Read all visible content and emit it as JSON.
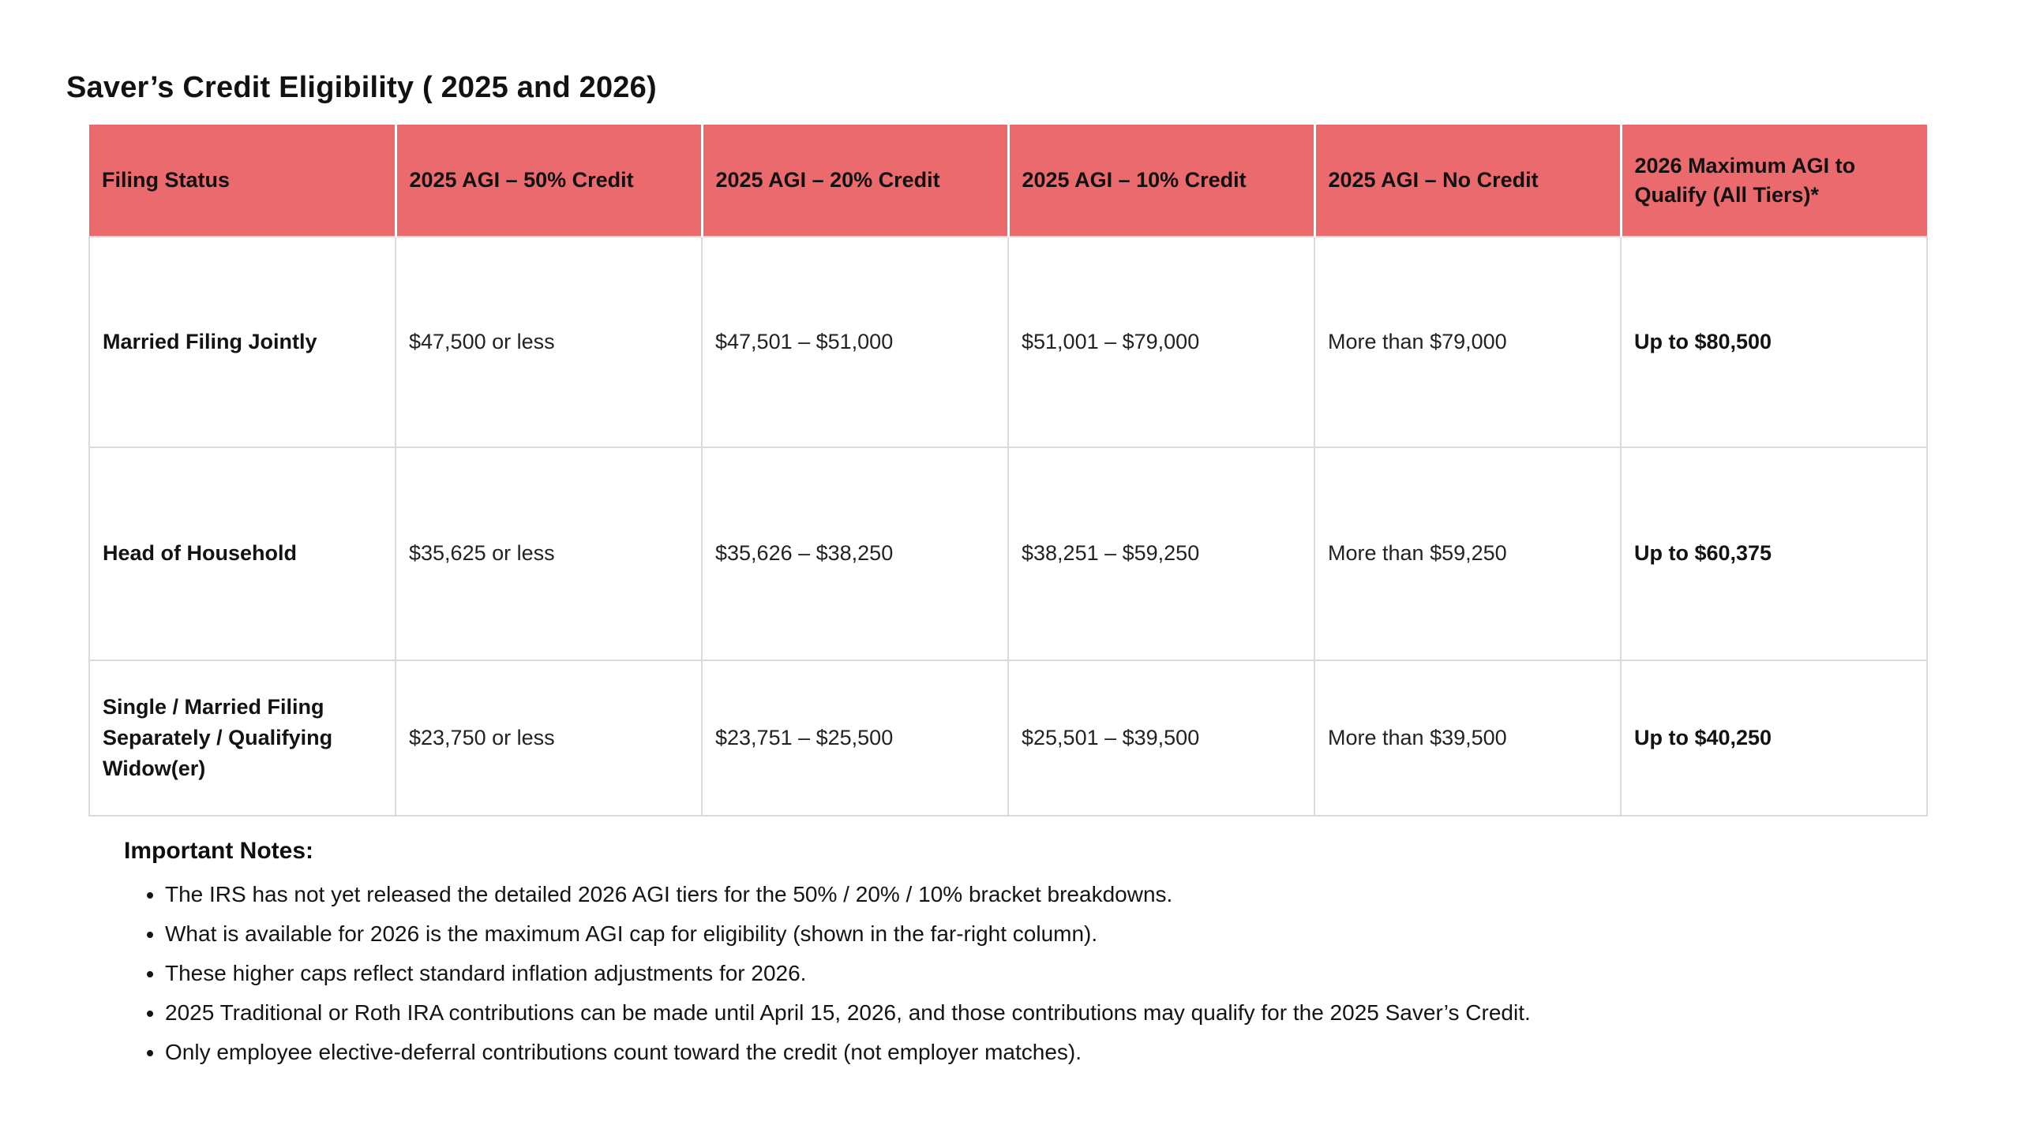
{
  "page": {
    "title": "Saver’s Credit Eligibility ( 2025 and 2026)"
  },
  "colors": {
    "header_bg": "#eb6a6e",
    "body_border": "#dbdbdb",
    "text": "#1a1a1a"
  },
  "table": {
    "columns": [
      "Filing Status",
      "2025 AGI – 50% Credit",
      "2025 AGI – 20% Credit",
      "2025 AGI – 10% Credit",
      "2025 AGI – No Credit",
      "2026 Maximum AGI to Qualify (All Tiers)*"
    ],
    "rows": [
      [
        "Married Filing Jointly",
        "$47,500 or less",
        "$47,501 – $51,000",
        "$51,001 – $79,000",
        "More than $79,000",
        "Up to $80,500"
      ],
      [
        "Head of Household",
        "$35,625 or less",
        "$35,626 – $38,250",
        "$38,251 – $59,250",
        "More than $59,250",
        "Up to $60,375"
      ],
      [
        "Single / Married Filing Separately / Qualifying Widow(er)",
        "$23,750 or less",
        "$23,751 – $25,500",
        "$25,501 – $39,500",
        "More than $39,500",
        "Up to $40,250"
      ]
    ]
  },
  "notes": {
    "heading": "Important Notes:",
    "items": [
      "The IRS has not yet released the detailed 2026 AGI tiers for the 50% / 20% / 10% bracket breakdowns.",
      "What is available for 2026 is the maximum AGI cap for eligibility (shown in the far-right column).",
      "These higher caps reflect standard inflation adjustments for 2026.",
      "2025 Traditional or Roth IRA contributions can be made until April 15, 2026, and those contributions may qualify for the 2025 Saver’s Credit.",
      "Only employee elective-deferral contributions count toward the credit (not employer matches)."
    ]
  }
}
